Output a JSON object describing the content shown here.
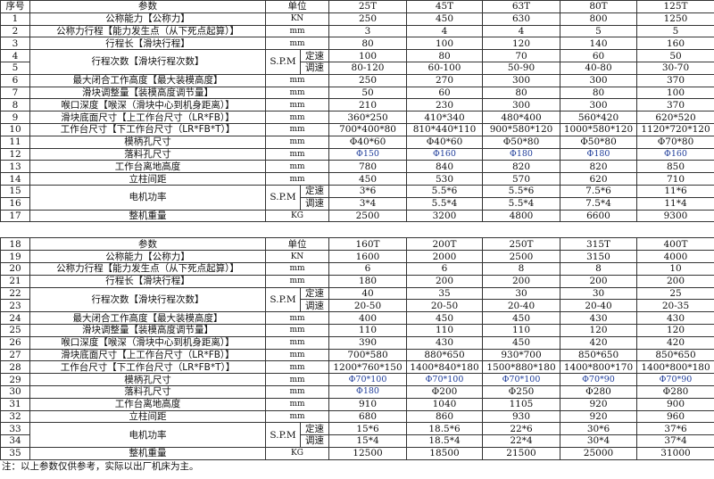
{
  "tables": [
    {
      "header": {
        "seq": "序号",
        "param": "参数",
        "unit": "单位",
        "models": [
          "25T",
          "45T",
          "63T",
          "80T",
          "125T"
        ]
      },
      "rows": [
        {
          "seq": "1",
          "param": "公称能力【公称力】",
          "unit": "KN",
          "values": [
            "250",
            "450",
            "630",
            "800",
            "1250"
          ]
        },
        {
          "seq": "2",
          "param": "公称力行程【能力发生点（从下死点起算）】",
          "unit": "mm",
          "values": [
            "3",
            "4",
            "4",
            "5",
            "5"
          ]
        },
        {
          "seq": "3",
          "param": "行程长【滑块行程】",
          "unit": "mm",
          "values": [
            "80",
            "100",
            "120",
            "140",
            "160"
          ]
        },
        {
          "seq": "4",
          "param": "行程次数【滑块行程次数】",
          "unit": "S.P.M",
          "span": 2,
          "sub": "定速",
          "values": [
            "100",
            "80",
            "70",
            "60",
            "50"
          ]
        },
        {
          "seq": "5",
          "sub": "调速",
          "values": [
            "80-120",
            "60-100",
            "50-90",
            "40-80",
            "30-70"
          ]
        },
        {
          "seq": "6",
          "param": "最大闭合工作高度【最大装模高度】",
          "unit": "mm",
          "values": [
            "250",
            "270",
            "300",
            "300",
            "370"
          ]
        },
        {
          "seq": "7",
          "param": "滑块调整量【装模高度调节量】",
          "unit": "mm",
          "values": [
            "50",
            "60",
            "80",
            "80",
            "100"
          ]
        },
        {
          "seq": "8",
          "param": "喉口深度【喉深（滑块中心到机身距离）】",
          "unit": "mm",
          "values": [
            "210",
            "230",
            "300",
            "300",
            "370"
          ]
        },
        {
          "seq": "9",
          "param": "滑块底面尺寸【上工作台尺寸（LR*FB）】",
          "unit": "mm",
          "values": [
            "360*250",
            "410*340",
            "480*400",
            "560*420",
            "620*520"
          ]
        },
        {
          "seq": "10",
          "param": "工作台尺寸【下工作台尺寸（LR*FB*T）】",
          "unit": "mm",
          "values": [
            "700*400*80",
            "810*440*110",
            "900*580*120",
            "1000*580*120",
            "1120*720*120"
          ]
        },
        {
          "seq": "11",
          "param": "模柄孔尺寸",
          "unit": "mm",
          "values": [
            "Φ40*60",
            "Φ40*60",
            "Φ50*80",
            "Φ50*80",
            "Φ70*80"
          ]
        },
        {
          "seq": "12",
          "param": "落料孔尺寸",
          "unit": "mm",
          "blue": true,
          "values": [
            "Φ150",
            "Φ160",
            "Φ180",
            "Φ180",
            "Φ160"
          ]
        },
        {
          "seq": "13",
          "param": "工作台离地高度",
          "unit": "mm",
          "values": [
            "780",
            "840",
            "820",
            "820",
            "850"
          ]
        },
        {
          "seq": "14",
          "param": "立柱间距",
          "unit": "mm",
          "values": [
            "450",
            "530",
            "570",
            "620",
            "710"
          ]
        },
        {
          "seq": "15",
          "param": "电机功率",
          "unit": "S.P.M",
          "span": 2,
          "sub": "定速",
          "values": [
            "3*6",
            "5.5*6",
            "5.5*6",
            "7.5*6",
            "11*6"
          ]
        },
        {
          "seq": "16",
          "sub": "调速",
          "values": [
            "3*4",
            "5.5*4",
            "5.5*4",
            "7.5*4",
            "11*4"
          ]
        },
        {
          "seq": "17",
          "param": "整机重量",
          "unit": "KG",
          "values": [
            "2500",
            "3200",
            "4800",
            "6600",
            "9300"
          ]
        }
      ]
    },
    {
      "header": {
        "seq": "18",
        "param": "参数",
        "unit": "单位",
        "models": [
          "160T",
          "200T",
          "250T",
          "315T",
          "400T"
        ]
      },
      "rows": [
        {
          "seq": "19",
          "param": "公称能力【公称力】",
          "unit": "KN",
          "values": [
            "1600",
            "2000",
            "2500",
            "3150",
            "4000"
          ]
        },
        {
          "seq": "20",
          "param": "公称力行程【能力发生点（从下死点起算）】",
          "unit": "mm",
          "values": [
            "6",
            "6",
            "8",
            "8",
            "10"
          ]
        },
        {
          "seq": "21",
          "param": "行程长【滑块行程】",
          "unit": "mm",
          "values": [
            "180",
            "200",
            "200",
            "200",
            "200"
          ]
        },
        {
          "seq": "22",
          "param": "行程次数【滑块行程次数】",
          "unit": "S.P.M",
          "span": 2,
          "sub": "定速",
          "values": [
            "40",
            "35",
            "30",
            "30",
            "25"
          ]
        },
        {
          "seq": "23",
          "sub": "调速",
          "values": [
            "20-50",
            "20-50",
            "20-40",
            "20-40",
            "20-35"
          ]
        },
        {
          "seq": "24",
          "param": "最大闭合工作高度【最大装模高度】",
          "unit": "mm",
          "values": [
            "400",
            "450",
            "450",
            "430",
            "430"
          ]
        },
        {
          "seq": "25",
          "param": "滑块调整量【装模高度调节量】",
          "unit": "mm",
          "values": [
            "110",
            "110",
            "110",
            "120",
            "120"
          ]
        },
        {
          "seq": "26",
          "param": "喉口深度【喉深（滑块中心到机身距离）】",
          "unit": "mm",
          "values": [
            "390",
            "430",
            "450",
            "420",
            "420"
          ]
        },
        {
          "seq": "27",
          "param": "滑块底面尺寸【上工作台尺寸（LR*FB）】",
          "unit": "mm",
          "values": [
            "700*580",
            "880*650",
            "930*700",
            "850*650",
            "850*650"
          ]
        },
        {
          "seq": "28",
          "param": "工作台尺寸【下工作台尺寸（LR*FB*T）】",
          "unit": "mm",
          "values": [
            "1200*760*150",
            "1400*840*180",
            "1500*880*180",
            "1400*800*170",
            "1400*800*180"
          ]
        },
        {
          "seq": "29",
          "param": "模柄孔尺寸",
          "unit": "mm",
          "blue": true,
          "values": [
            "Φ70*100",
            "Φ70*100",
            "Φ70*100",
            "Φ70*90",
            "Φ70*90"
          ]
        },
        {
          "seq": "30",
          "param": "落料孔尺寸",
          "unit": "mm",
          "blueFirst": true,
          "values": [
            "Φ180",
            "Φ200",
            "Φ250",
            "Φ280",
            "Φ280"
          ]
        },
        {
          "seq": "31",
          "param": "工作台离地高度",
          "unit": "mm",
          "values": [
            "910",
            "1040",
            "1105",
            "920",
            "900"
          ]
        },
        {
          "seq": "32",
          "param": "立柱间距",
          "unit": "mm",
          "values": [
            "680",
            "860",
            "930",
            "920",
            "960"
          ]
        },
        {
          "seq": "33",
          "param": "电机功率",
          "unit": "S.P.M",
          "span": 2,
          "sub": "定速",
          "values": [
            "15*6",
            "18.5*6",
            "22*6",
            "30*6",
            "37*6"
          ]
        },
        {
          "seq": "34",
          "sub": "调速",
          "values": [
            "15*4",
            "18.5*4",
            "22*4",
            "30*4",
            "37*4"
          ]
        },
        {
          "seq": "35",
          "param": "整机重量",
          "unit": "KG",
          "values": [
            "12500",
            "18500",
            "21500",
            "25000",
            "31000"
          ]
        }
      ]
    }
  ],
  "note": "注：以上参数仅供参考，实际以出厂机床为主。"
}
